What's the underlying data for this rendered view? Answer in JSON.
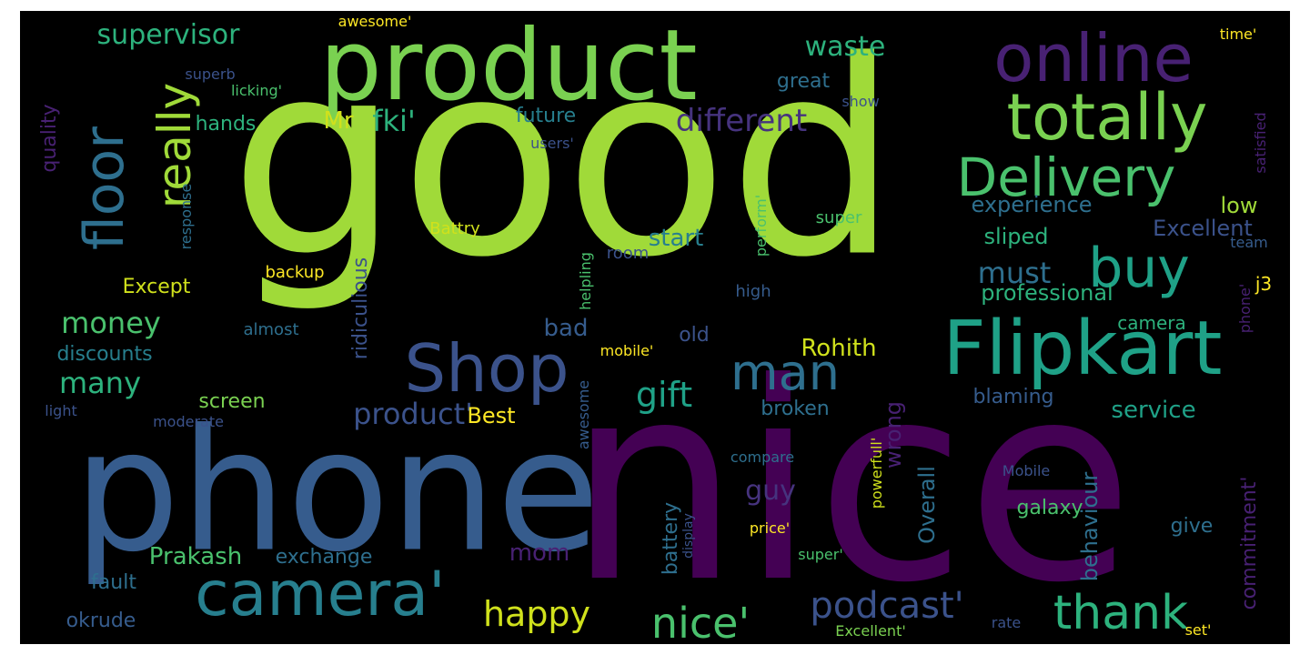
{
  "words": [
    {
      "text": "good",
      "color": "#a0da39",
      "rotate": false
    },
    {
      "text": "nice",
      "color": "#440154",
      "rotate": false
    },
    {
      "text": "phone",
      "color": "#365c8d",
      "rotate": false
    },
    {
      "text": "product",
      "color": "#7ad151",
      "rotate": false
    },
    {
      "text": "Flipkart",
      "color": "#1fa187",
      "rotate": false
    },
    {
      "text": "camera'",
      "color": "#277f8e",
      "rotate": false
    },
    {
      "text": "online",
      "color": "#482173",
      "rotate": false
    },
    {
      "text": "totally",
      "color": "#7ad151",
      "rotate": false
    },
    {
      "text": "Delivery",
      "color": "#4ac16d",
      "rotate": false
    },
    {
      "text": "Shop",
      "color": "#3b528b",
      "rotate": false
    },
    {
      "text": "man",
      "color": "#2e6f8e",
      "rotate": false
    },
    {
      "text": "buy",
      "color": "#1fa187",
      "rotate": false
    },
    {
      "text": "floor",
      "color": "#2e6f8e",
      "rotate": true
    },
    {
      "text": "really",
      "color": "#a0da39",
      "rotate": true
    },
    {
      "text": "thank",
      "color": "#2db27d",
      "rotate": false
    },
    {
      "text": "nice'",
      "color": "#4ac16d",
      "rotate": false
    },
    {
      "text": "podcast'",
      "color": "#3b528b",
      "rotate": false
    },
    {
      "text": "happy",
      "color": "#d0e11c",
      "rotate": false
    },
    {
      "text": "different",
      "color": "#46337e",
      "rotate": false
    },
    {
      "text": "waste",
      "color": "#2db27d",
      "rotate": false
    },
    {
      "text": "supervisor",
      "color": "#2db27d",
      "rotate": false
    },
    {
      "text": "money",
      "color": "#4ac16d",
      "rotate": false
    },
    {
      "text": "many",
      "color": "#2db27d",
      "rotate": false
    },
    {
      "text": "Mr",
      "color": "#d0e11c",
      "rotate": false
    },
    {
      "text": "fki'",
      "color": "#2db27d",
      "rotate": false
    },
    {
      "text": "must",
      "color": "#2e6f8e",
      "rotate": false
    },
    {
      "text": "gift",
      "color": "#1fa187",
      "rotate": false
    },
    {
      "text": "product'",
      "color": "#3b528b",
      "rotate": false
    },
    {
      "text": "Rohith",
      "color": "#d0e11c",
      "rotate": false
    },
    {
      "text": "Prakash",
      "color": "#4ac16d",
      "rotate": false
    },
    {
      "text": "mom",
      "color": "#482173",
      "rotate": false
    },
    {
      "text": "guy",
      "color": "#46337e",
      "rotate": false
    },
    {
      "text": "low",
      "color": "#a0da39",
      "rotate": false
    },
    {
      "text": "Excellent",
      "color": "#3b528b",
      "rotate": false
    },
    {
      "text": "experience",
      "color": "#2e6f8e",
      "rotate": false
    },
    {
      "text": "sliped",
      "color": "#2db27d",
      "rotate": false
    },
    {
      "text": "professional",
      "color": "#2db27d",
      "rotate": false
    },
    {
      "text": "service",
      "color": "#1fa187",
      "rotate": false
    },
    {
      "text": "start",
      "color": "#277f8e",
      "rotate": false
    },
    {
      "text": "bad",
      "color": "#365c8d",
      "rotate": false
    },
    {
      "text": "Except",
      "color": "#d0e11c",
      "rotate": false
    },
    {
      "text": "discounts",
      "color": "#277f8e",
      "rotate": false
    },
    {
      "text": "screen",
      "color": "#7ad151",
      "rotate": false
    },
    {
      "text": "exchange",
      "color": "#2e6f8e",
      "rotate": false
    },
    {
      "text": "fault",
      "color": "#2e6f8e",
      "rotate": false
    },
    {
      "text": "okrude",
      "color": "#365c8d",
      "rotate": false
    },
    {
      "text": "quality",
      "color": "#482173",
      "rotate": true
    },
    {
      "text": "hands",
      "color": "#2db27d",
      "rotate": false
    },
    {
      "text": "future",
      "color": "#277f8e",
      "rotate": false
    },
    {
      "text": "great",
      "color": "#2e6f8e",
      "rotate": false
    },
    {
      "text": "broken",
      "color": "#2e6f8e",
      "rotate": false
    },
    {
      "text": "blaming",
      "color": "#365c8d",
      "rotate": false
    },
    {
      "text": "camera",
      "color": "#2db27d",
      "rotate": false
    },
    {
      "text": "galaxy",
      "color": "#4ac16d",
      "rotate": false
    },
    {
      "text": "give",
      "color": "#2e6f8e",
      "rotate": false
    },
    {
      "text": "old",
      "color": "#3b528b",
      "rotate": false
    },
    {
      "text": "Overall",
      "color": "#2e6f8e",
      "rotate": true
    },
    {
      "text": "wrong",
      "color": "#482173",
      "rotate": true
    },
    {
      "text": "behaviour",
      "color": "#2e6f8e",
      "rotate": true
    },
    {
      "text": "commitment'",
      "color": "#482173",
      "rotate": true
    },
    {
      "text": "j3",
      "color": "#fde725",
      "rotate": false
    },
    {
      "text": "Best",
      "color": "#fde725",
      "rotate": false
    },
    {
      "text": "battery",
      "color": "#2e6f8e",
      "rotate": true
    },
    {
      "text": "ridiculious",
      "color": "#3b528b",
      "rotate": true
    },
    {
      "text": "Battry",
      "color": "#d0e11c",
      "rotate": false
    },
    {
      "text": "backup",
      "color": "#fde725",
      "rotate": false
    },
    {
      "text": "room",
      "color": "#3b528b",
      "rotate": false
    },
    {
      "text": "super",
      "color": "#4ac16d",
      "rotate": false
    },
    {
      "text": "high",
      "color": "#365c8d",
      "rotate": false
    },
    {
      "text": "almost",
      "color": "#2e6f8e",
      "rotate": false
    },
    {
      "text": "mobile'",
      "color": "#fde725",
      "rotate": false
    },
    {
      "text": "compare",
      "color": "#2e6f8e",
      "rotate": false
    },
    {
      "text": "price'",
      "color": "#fde725",
      "rotate": false
    },
    {
      "text": "super'",
      "color": "#4ac16d",
      "rotate": false
    },
    {
      "text": "Mobile",
      "color": "#3b528b",
      "rotate": false
    },
    {
      "text": "Excellent'",
      "color": "#7ad151",
      "rotate": false
    },
    {
      "text": "rate",
      "color": "#3b528b",
      "rotate": false
    },
    {
      "text": "set'",
      "color": "#fde725",
      "rotate": false
    },
    {
      "text": "awesome'",
      "color": "#fde725",
      "rotate": false
    },
    {
      "text": "superb",
      "color": "#3b528b",
      "rotate": false
    },
    {
      "text": "licking'",
      "color": "#4ac16d",
      "rotate": false
    },
    {
      "text": "users'",
      "color": "#3b528b",
      "rotate": false
    },
    {
      "text": "show",
      "color": "#3b528b",
      "rotate": false
    },
    {
      "text": "time'",
      "color": "#fde725",
      "rotate": false
    },
    {
      "text": "satisfied",
      "color": "#482173",
      "rotate": true
    },
    {
      "text": "team",
      "color": "#365c8d",
      "rotate": false
    },
    {
      "text": "phone'",
      "color": "#482173",
      "rotate": true
    },
    {
      "text": "response",
      "color": "#2e6f8e",
      "rotate": true
    },
    {
      "text": "light",
      "color": "#3b528b",
      "rotate": false
    },
    {
      "text": "moderate",
      "color": "#3b528b",
      "rotate": false
    },
    {
      "text": "perform'",
      "color": "#4ac16d",
      "rotate": true
    },
    {
      "text": "helpling",
      "color": "#4ac16d",
      "rotate": true
    },
    {
      "text": "awesome",
      "color": "#365c8d",
      "rotate": true
    },
    {
      "text": "powerfull'",
      "color": "#d0e11c",
      "rotate": true
    },
    {
      "text": "display",
      "color": "#3b528b",
      "rotate": true
    }
  ]
}
